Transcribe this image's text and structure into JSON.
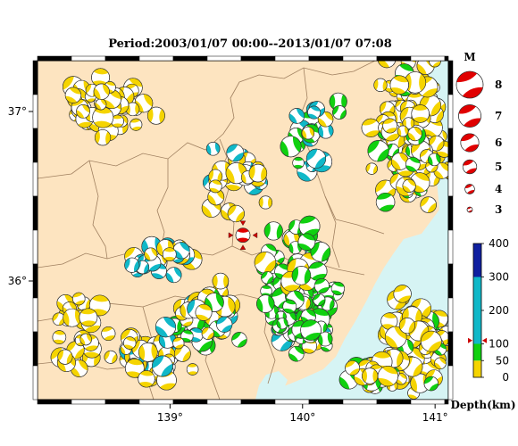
{
  "title": "Period:2003/01/07 00:00--2013/01/07 07:08",
  "map": {
    "lon_ticks": [
      {
        "label": "139°",
        "value": 139
      },
      {
        "label": "140°",
        "value": 140
      },
      {
        "label": "141°",
        "value": 141
      }
    ],
    "lat_ticks": [
      {
        "label": "37°",
        "value": 37
      },
      {
        "label": "36°",
        "value": 36
      }
    ],
    "lon_range": [
      138.0,
      141.1
    ],
    "lat_range": [
      35.3,
      37.3
    ],
    "colors": {
      "land": "#fde4c0",
      "sea": "#d6f4f4",
      "border": "#a08060",
      "shallow": "#f5d400",
      "mid": "#10d010",
      "deep": "#10b8c8"
    },
    "main_event": {
      "lon": 139.55,
      "lat": 36.27,
      "depth_km": 110
    }
  },
  "magnitude_legend": {
    "heading": "M",
    "items": [
      {
        "label": "8",
        "mag": 8
      },
      {
        "label": "7",
        "mag": 7
      },
      {
        "label": "6",
        "mag": 6
      },
      {
        "label": "5",
        "mag": 5
      },
      {
        "label": "4",
        "mag": 4
      },
      {
        "label": "3",
        "mag": 3
      }
    ]
  },
  "depth_scale": {
    "title": "Depth(km)",
    "ticks": [
      {
        "label": "400",
        "value": 400
      },
      {
        "label": "300",
        "value": 300
      },
      {
        "label": "200",
        "value": 200
      },
      {
        "label": "100",
        "value": 100
      },
      {
        "label": "50",
        "value": 50
      },
      {
        "label": "0",
        "value": 0
      }
    ],
    "bands": [
      {
        "from": 0,
        "to": 50,
        "color": "#f5d400"
      },
      {
        "from": 50,
        "to": 100,
        "color": "#10d010"
      },
      {
        "from": 100,
        "to": 300,
        "color": "#10b8c8"
      },
      {
        "from": 300,
        "to": 400,
        "color": "#1020a0"
      }
    ],
    "marker_depth": 110
  }
}
